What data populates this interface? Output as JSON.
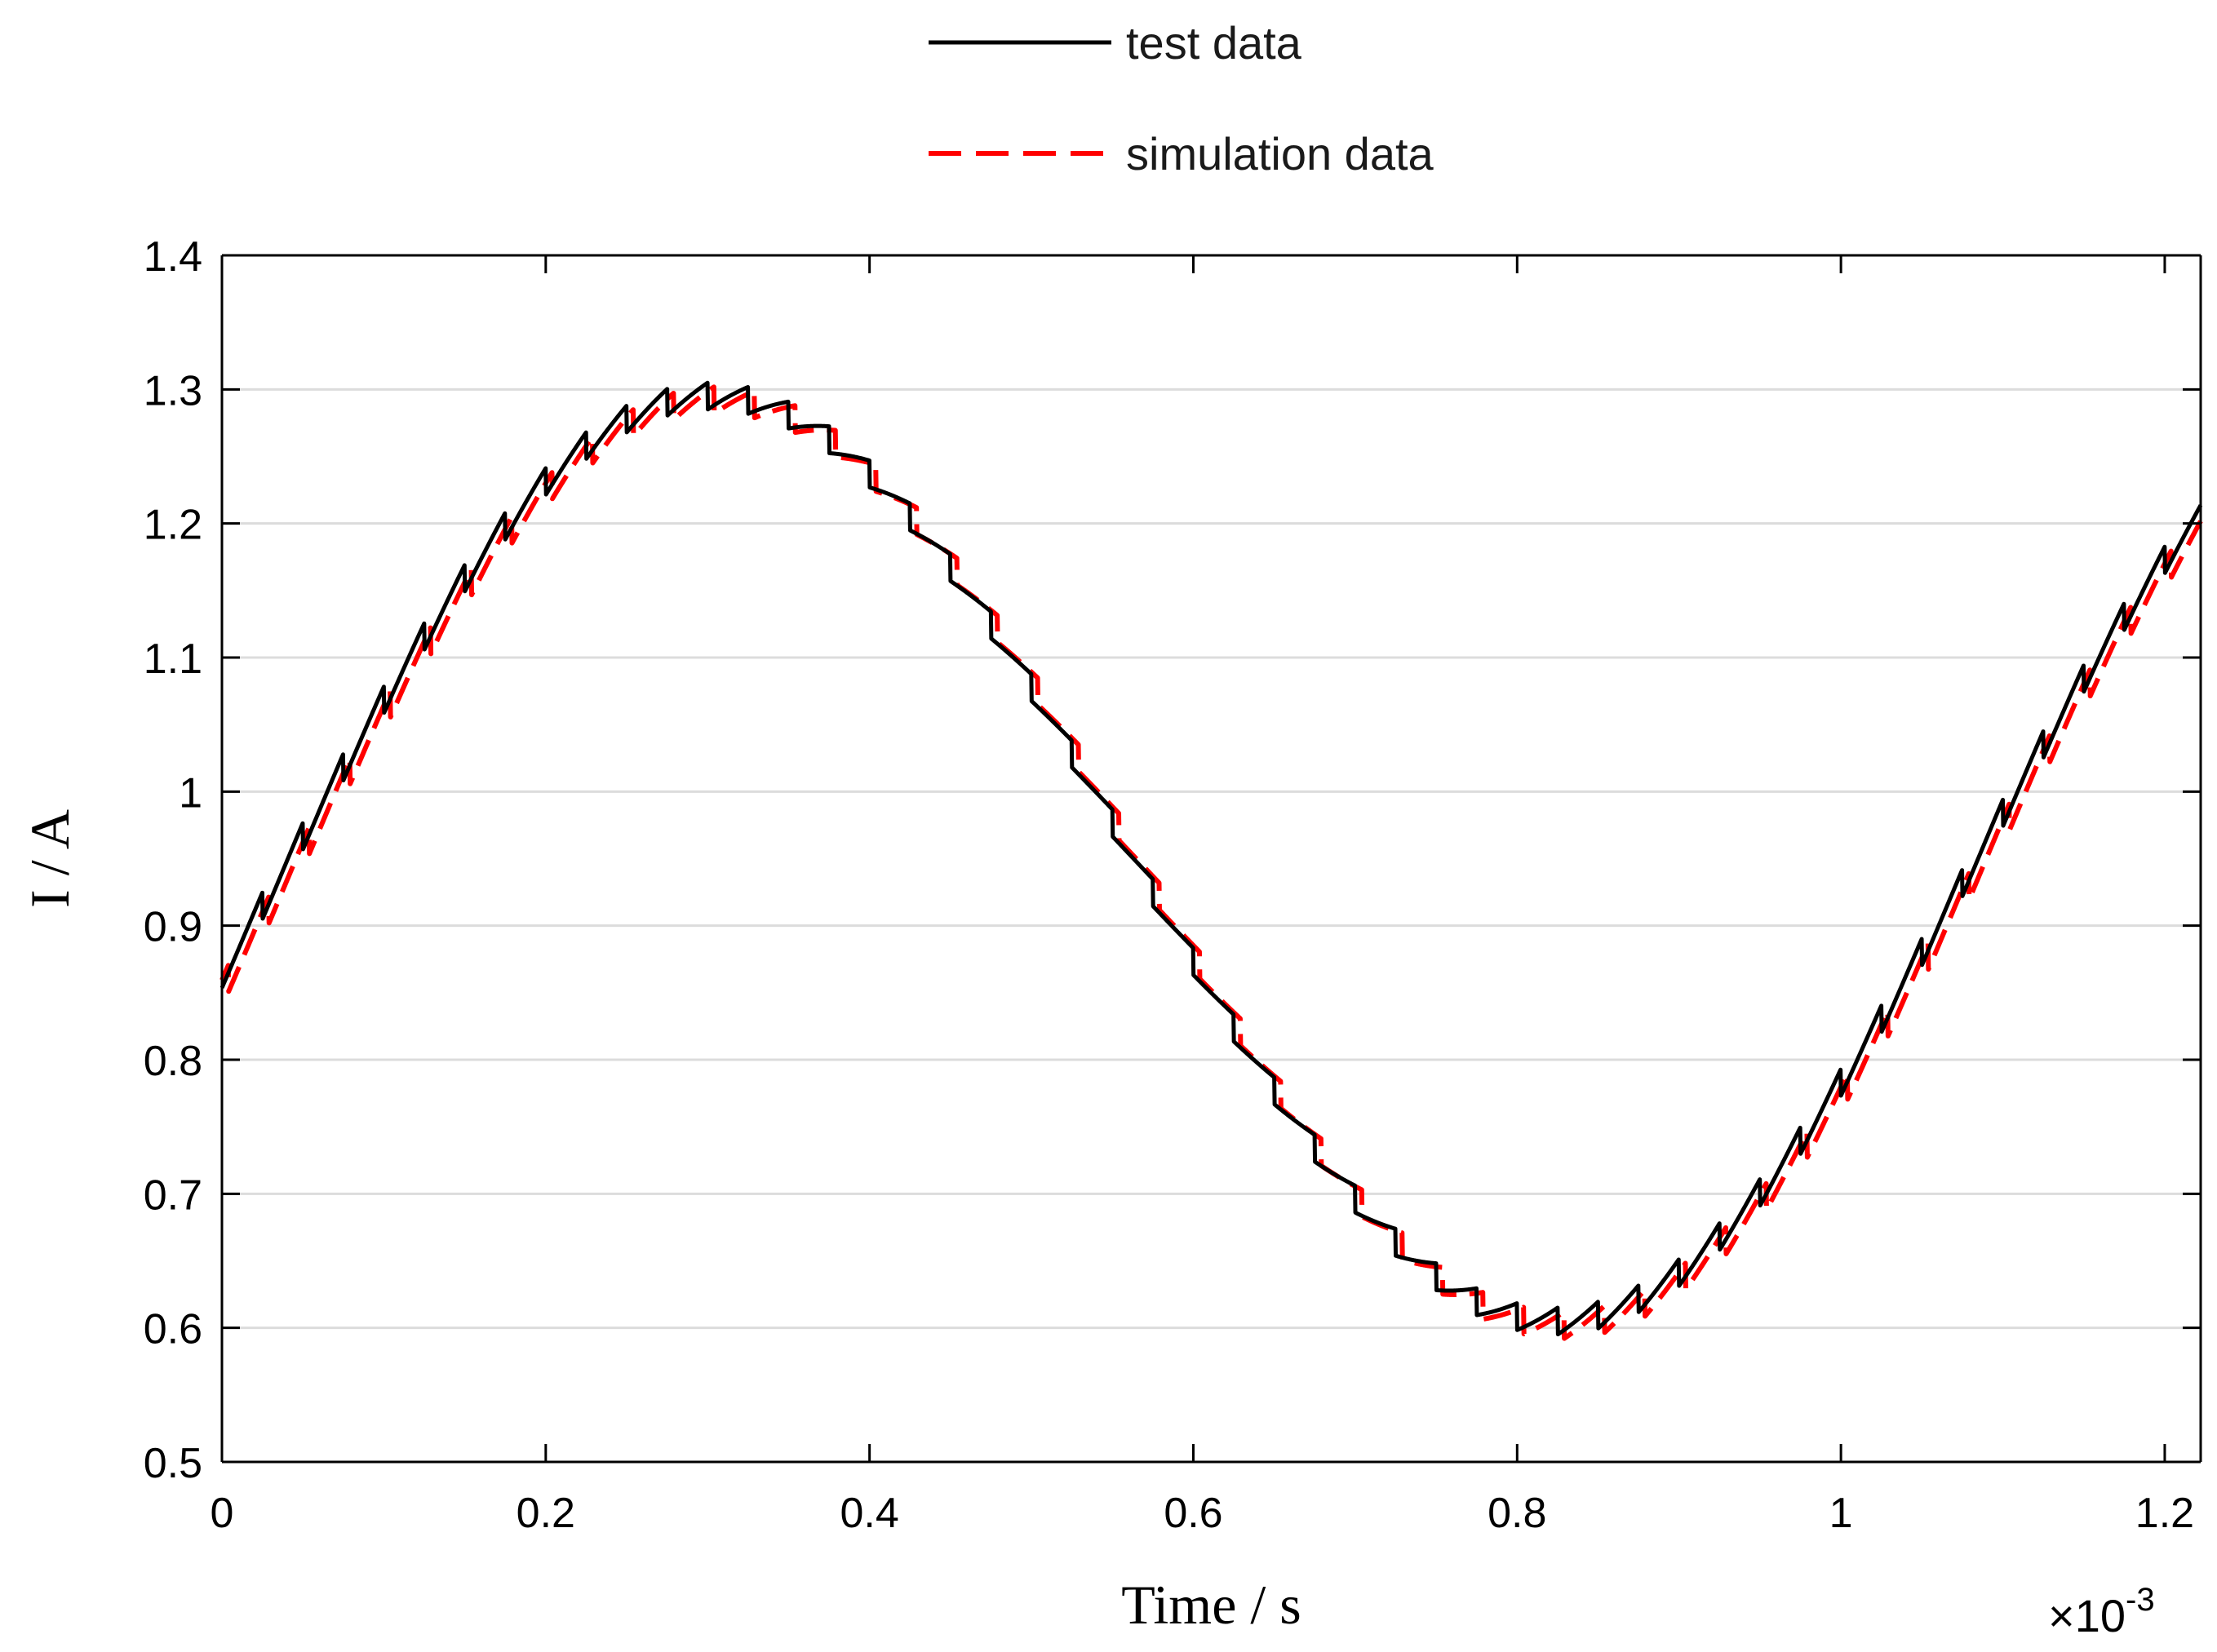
{
  "chart_data": {
    "type": "line",
    "title": "",
    "xlabel": "Time / s",
    "ylabel": "I / A",
    "x_multiplier": "×10",
    "x_multiplier_exp": "-3",
    "xlim": [
      0,
      1.2222
    ],
    "ylim": [
      0.5,
      1.4
    ],
    "xticks": [
      0,
      0.2,
      0.4,
      0.6,
      0.8,
      1,
      1.2
    ],
    "xtick_labels": [
      "0",
      "0.2",
      "0.4",
      "0.6",
      "0.8",
      "1",
      "1.2"
    ],
    "yticks": [
      0.5,
      0.6,
      0.7,
      0.8,
      0.9,
      1,
      1.1,
      1.2,
      1.3,
      1.4
    ],
    "ytick_labels": [
      "0.5",
      "0.6",
      "0.7",
      "0.8",
      "0.9",
      "1",
      "1.1",
      "1.2",
      "1.3",
      "1.4"
    ],
    "grid": "horizontal",
    "legend_placement": "top-center-outside",
    "model": {
      "offset": 0.95,
      "amplitude": 0.345,
      "period": 1.0417,
      "peak_time": 0.3024,
      "switch_period": 0.025,
      "ripple": 0.02
    },
    "series": [
      {
        "name": "test data",
        "color": "#000000",
        "style": "solid",
        "t_shift": 0,
        "y_shift": 0
      },
      {
        "name": "simulation data",
        "color": "#ff0000",
        "style": "dashed",
        "t_shift": 0.004,
        "y_shift": -0.003
      }
    ]
  }
}
